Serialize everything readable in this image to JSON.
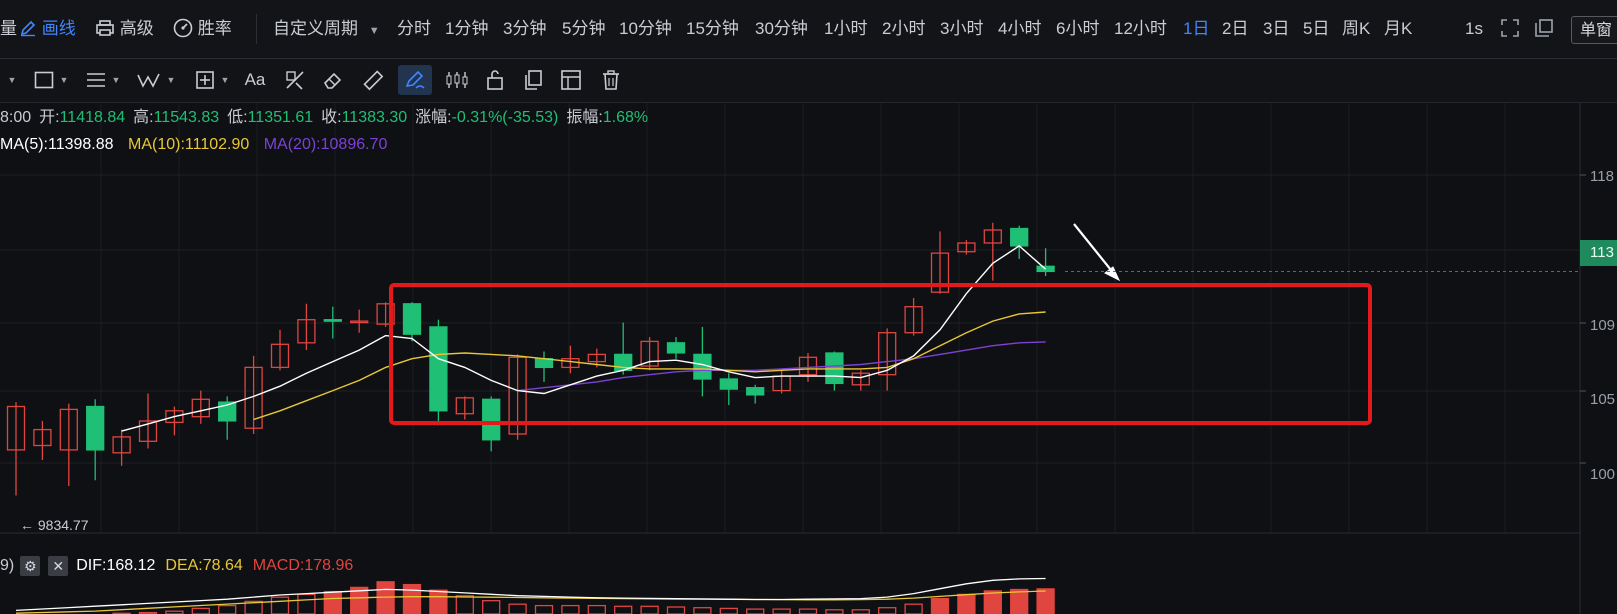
{
  "topbar": {
    "left_items": [
      {
        "label": "量",
        "icon": "volume-icon"
      },
      {
        "label": "画线",
        "icon": "pen-icon",
        "active": true
      },
      {
        "label": "高级",
        "icon": "printer-icon"
      },
      {
        "label": "胜率",
        "icon": "gauge-icon"
      }
    ],
    "custom_period": "自定义周期",
    "periods": [
      "分时",
      "1分钟",
      "3分钟",
      "5分钟",
      "10分钟",
      "15分钟",
      "30分钟",
      "1小时",
      "2小时",
      "3小时",
      "4小时",
      "6小时",
      "12小时",
      "1日",
      "2日",
      "3日",
      "5日",
      "周K",
      "月K"
    ],
    "active_period": "1日",
    "refresh": "1s",
    "single_window": "单窗"
  },
  "toolbar": {
    "font_tool": "Aa",
    "active_tool": "trend-line-tool"
  },
  "info": {
    "time": "8:00",
    "open_label": "开:",
    "open": "11418.84",
    "high_label": "高:",
    "high": "11543.83",
    "low_label": "低:",
    "low": "11351.61",
    "close_label": "收:",
    "close": "11383.30",
    "change_label": "涨幅:",
    "change": "-0.31%(-35.53)",
    "amplitude_label": "振幅:",
    "amplitude": "1.68%"
  },
  "ma": {
    "ma5": "MA(5):11398.88",
    "ma10": "MA(10):11102.90",
    "ma20": "MA(20):10896.70"
  },
  "macd": {
    "prefix": "9)",
    "dif": "DIF:168.12",
    "dea": "DEA:78.64",
    "macd": "MACD:178.96"
  },
  "price_axis": {
    "labels": [
      "118",
      "113",
      "109",
      "105",
      "100"
    ],
    "badge": "113",
    "low_marker": "← 9834.77"
  },
  "colors": {
    "up": "#e0453f",
    "down": "#1fbf75",
    "ma5": "#ffffff",
    "ma10": "#e8c736",
    "ma20": "#7b42d6",
    "active": "#3f86ff",
    "box": "#e3191b"
  },
  "chart_data": {
    "type": "candlestick",
    "y_range": [
      9700,
      12050
    ],
    "candles": [
      {
        "o": 10150,
        "c": 10450,
        "h": 10480,
        "l": 9834.77
      },
      {
        "o": 10180,
        "c": 10290,
        "h": 10350,
        "l": 10080
      },
      {
        "o": 10150,
        "c": 10430,
        "h": 10470,
        "l": 9900
      },
      {
        "o": 10450,
        "c": 10150,
        "h": 10500,
        "l": 9940
      },
      {
        "o": 10130,
        "c": 10240,
        "h": 10290,
        "l": 10040
      },
      {
        "o": 10210,
        "c": 10350,
        "h": 10540,
        "l": 10160
      },
      {
        "o": 10340,
        "c": 10420,
        "h": 10450,
        "l": 10250
      },
      {
        "o": 10380,
        "c": 10500,
        "h": 10560,
        "l": 10330
      },
      {
        "o": 10480,
        "c": 10350,
        "h": 10520,
        "l": 10220
      },
      {
        "o": 10300,
        "c": 10720,
        "h": 10800,
        "l": 10260
      },
      {
        "o": 10720,
        "c": 10880,
        "h": 10980,
        "l": 10700
      },
      {
        "o": 10890,
        "c": 11050,
        "h": 11160,
        "l": 10840
      },
      {
        "o": 11050,
        "c": 11040,
        "h": 11140,
        "l": 10920
      },
      {
        "o": 11030,
        "c": 11040,
        "h": 11120,
        "l": 10960
      },
      {
        "o": 11020,
        "c": 11160,
        "h": 11170,
        "l": 11000
      },
      {
        "o": 11160,
        "c": 10950,
        "h": 11170,
        "l": 10900
      },
      {
        "o": 11000,
        "c": 10420,
        "h": 11050,
        "l": 10320
      },
      {
        "o": 10400,
        "c": 10510,
        "h": 10520,
        "l": 10360
      },
      {
        "o": 10500,
        "c": 10220,
        "h": 10520,
        "l": 10140
      },
      {
        "o": 10260,
        "c": 10790,
        "h": 10810,
        "l": 10220
      },
      {
        "o": 10780,
        "c": 10720,
        "h": 10830,
        "l": 10620
      },
      {
        "o": 10720,
        "c": 10780,
        "h": 10870,
        "l": 10680
      },
      {
        "o": 10760,
        "c": 10810,
        "h": 10850,
        "l": 10720
      },
      {
        "o": 10810,
        "c": 10700,
        "h": 11030,
        "l": 10670
      },
      {
        "o": 10730,
        "c": 10900,
        "h": 10930,
        "l": 10700
      },
      {
        "o": 10890,
        "c": 10820,
        "h": 10930,
        "l": 10780
      },
      {
        "o": 10810,
        "c": 10640,
        "h": 11000,
        "l": 10520
      },
      {
        "o": 10640,
        "c": 10570,
        "h": 10680,
        "l": 10460
      },
      {
        "o": 10580,
        "c": 10530,
        "h": 10600,
        "l": 10470
      },
      {
        "o": 10560,
        "c": 10660,
        "h": 10700,
        "l": 10540
      },
      {
        "o": 10670,
        "c": 10790,
        "h": 10820,
        "l": 10620
      },
      {
        "o": 10820,
        "c": 10610,
        "h": 10830,
        "l": 10560
      },
      {
        "o": 10600,
        "c": 10680,
        "h": 10700,
        "l": 10560
      },
      {
        "o": 10670,
        "c": 10960,
        "h": 10990,
        "l": 10560
      },
      {
        "o": 10960,
        "c": 11140,
        "h": 11200,
        "l": 10940
      },
      {
        "o": 11240,
        "c": 11510,
        "h": 11660,
        "l": 11230
      },
      {
        "o": 11520,
        "c": 11580,
        "h": 11600,
        "l": 11500
      },
      {
        "o": 11580,
        "c": 11670,
        "h": 11720,
        "l": 11320
      },
      {
        "o": 11680,
        "c": 11560,
        "h": 11700,
        "l": 11470
      },
      {
        "o": 11418.84,
        "c": 11383.3,
        "h": 11543.83,
        "l": 11351.61
      }
    ],
    "ma5": [
      null,
      null,
      null,
      null,
      10280,
      10330,
      10380,
      10420,
      10460,
      10520,
      10590,
      10680,
      10760,
      10840,
      10940,
      10920,
      10780,
      10720,
      10630,
      10560,
      10540,
      10600,
      10660,
      10700,
      10760,
      10770,
      10740,
      10690,
      10650,
      10660,
      10660,
      10660,
      10650,
      10700,
      10800,
      10980,
      11230,
      11440,
      11560,
      11398.88
    ],
    "ma10": [
      null,
      null,
      null,
      null,
      null,
      null,
      null,
      null,
      null,
      10360,
      10420,
      10490,
      10560,
      10630,
      10720,
      10780,
      10810,
      10820,
      10810,
      10800,
      10780,
      10760,
      10740,
      10720,
      10710,
      10710,
      10710,
      10700,
      10690,
      10700,
      10710,
      10710,
      10710,
      10720,
      10780,
      10870,
      10960,
      11040,
      11090,
      11102.9
    ],
    "ma20": [
      null,
      null,
      null,
      null,
      null,
      null,
      null,
      null,
      null,
      null,
      null,
      null,
      null,
      null,
      null,
      null,
      null,
      null,
      null,
      10560,
      10580,
      10600,
      10620,
      10650,
      10670,
      10690,
      10700,
      10700,
      10700,
      10710,
      10720,
      10730,
      10740,
      10760,
      10780,
      10810,
      10840,
      10870,
      10890,
      10896.7
    ],
    "macd_hist": [
      -20,
      -15,
      -10,
      -5,
      5,
      10,
      20,
      40,
      60,
      90,
      120,
      140,
      160,
      190,
      230,
      210,
      170,
      130,
      95,
      70,
      60,
      60,
      60,
      55,
      55,
      50,
      45,
      40,
      35,
      35,
      35,
      30,
      30,
      45,
      70,
      110,
      140,
      165,
      175,
      178.96
    ],
    "dif_line": [
      -60,
      -50,
      -40,
      -30,
      -20,
      -10,
      0,
      10,
      20,
      35,
      50,
      60,
      70,
      80,
      90,
      85,
      75,
      65,
      55,
      45,
      40,
      35,
      30,
      28,
      26,
      24,
      22,
      20,
      18,
      18,
      20,
      22,
      24,
      35,
      60,
      95,
      130,
      155,
      165,
      168.12
    ],
    "dea_line": [
      -80,
      -75,
      -70,
      -65,
      -55,
      -45,
      -35,
      -25,
      -15,
      -5,
      5,
      15,
      25,
      30,
      35,
      38,
      38,
      36,
      34,
      32,
      30,
      28,
      26,
      24,
      22,
      21,
      20,
      19,
      18,
      17,
      16,
      16,
      17,
      20,
      28,
      40,
      52,
      64,
      72,
      78.64
    ]
  }
}
